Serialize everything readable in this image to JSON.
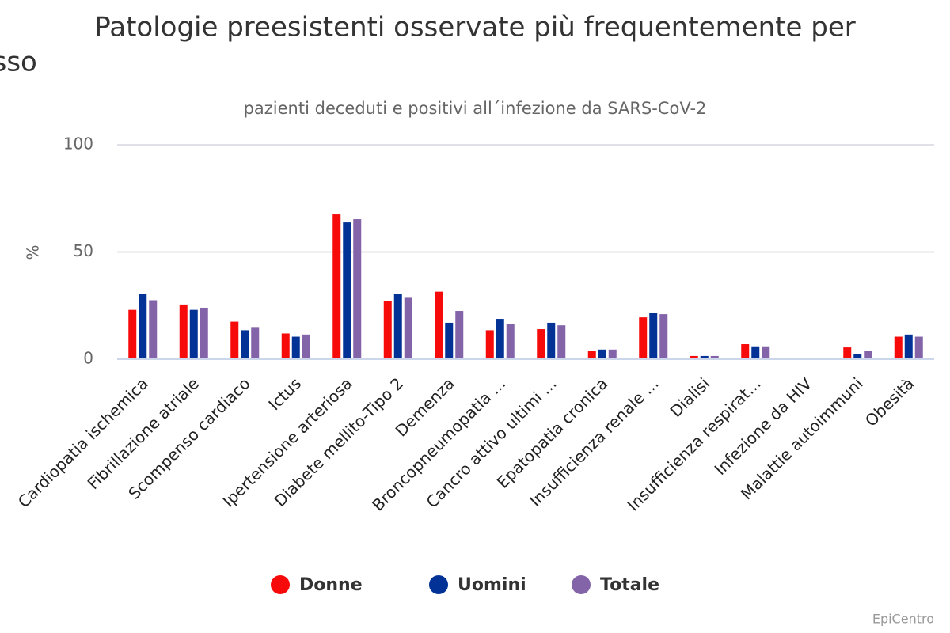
{
  "chart_data": {
    "type": "bar",
    "title": [
      "Patologie preesistenti osservate più frequentemente per",
      "sesso"
    ],
    "subtitle": "pazienti deceduti e positivi all´infezione da SARS-CoV-2",
    "y_label": "%",
    "credits": "EpiCentro",
    "categories": [
      "Cardiopatia ischemica",
      "Fibrillazione atriale",
      "Scompenso cardiaco",
      "Ictus",
      "Ipertensione arteriosa",
      "Diabete mellito-Tipo 2",
      "Demenza",
      "Broncopneumopatia ...",
      "Cancro attivo ultimi ...",
      "Epatopatia cronica",
      "Insufficienza renale ...",
      "Dialisi",
      "Insufficienza respirat...",
      "Infezione da HIV",
      "Malattie autoimmuni",
      "Obesità"
    ],
    "series": [
      {
        "name": "Donne",
        "color": "#f70a0a",
        "values": [
          23,
          25.5,
          17.5,
          12,
          67.5,
          27,
          31.5,
          13.5,
          14,
          3.8,
          19.5,
          1.5,
          7,
          0,
          5.5,
          10.5
        ]
      },
      {
        "name": "Uomini",
        "color": "#023296",
        "values": [
          30.5,
          23,
          13.5,
          10.5,
          63.8,
          30.5,
          17,
          18.8,
          17,
          4.5,
          21.5,
          1.5,
          6,
          0,
          2.5,
          11.5
        ]
      },
      {
        "name": "Totale",
        "color": "#8464a8",
        "values": [
          27.5,
          24,
          15,
          11.5,
          65.3,
          29,
          22.5,
          16.5,
          15.8,
          4.5,
          21,
          1.5,
          6,
          0,
          4,
          10.5
        ]
      }
    ],
    "ylim": [
      0,
      100
    ],
    "yticks": [
      0,
      50,
      100
    ],
    "grid": true,
    "legend": "bottom"
  }
}
